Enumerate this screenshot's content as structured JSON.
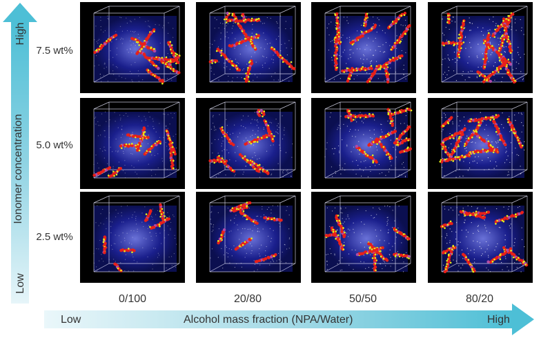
{
  "axes": {
    "y_title": "Ionomer concentration",
    "y_high": "High",
    "y_low": "Low",
    "x_title": "Alcohol mass fraction (NPA/Water)",
    "x_low": "Low",
    "x_high": "High"
  },
  "rows": [
    {
      "label": "7.5 wt%"
    },
    {
      "label": "5.0 wt%"
    },
    {
      "label": "2.5 wt%"
    }
  ],
  "columns": [
    {
      "label": "0/100"
    },
    {
      "label": "20/80"
    },
    {
      "label": "50/50"
    },
    {
      "label": "80/20"
    }
  ],
  "colors": {
    "arrow": "#4dbfd6",
    "box_bg": "#1a1f8c",
    "chain_red": "#e8201a",
    "chain_yellow": "#e6f21a",
    "chain_magenta": "#b04aa8"
  }
}
